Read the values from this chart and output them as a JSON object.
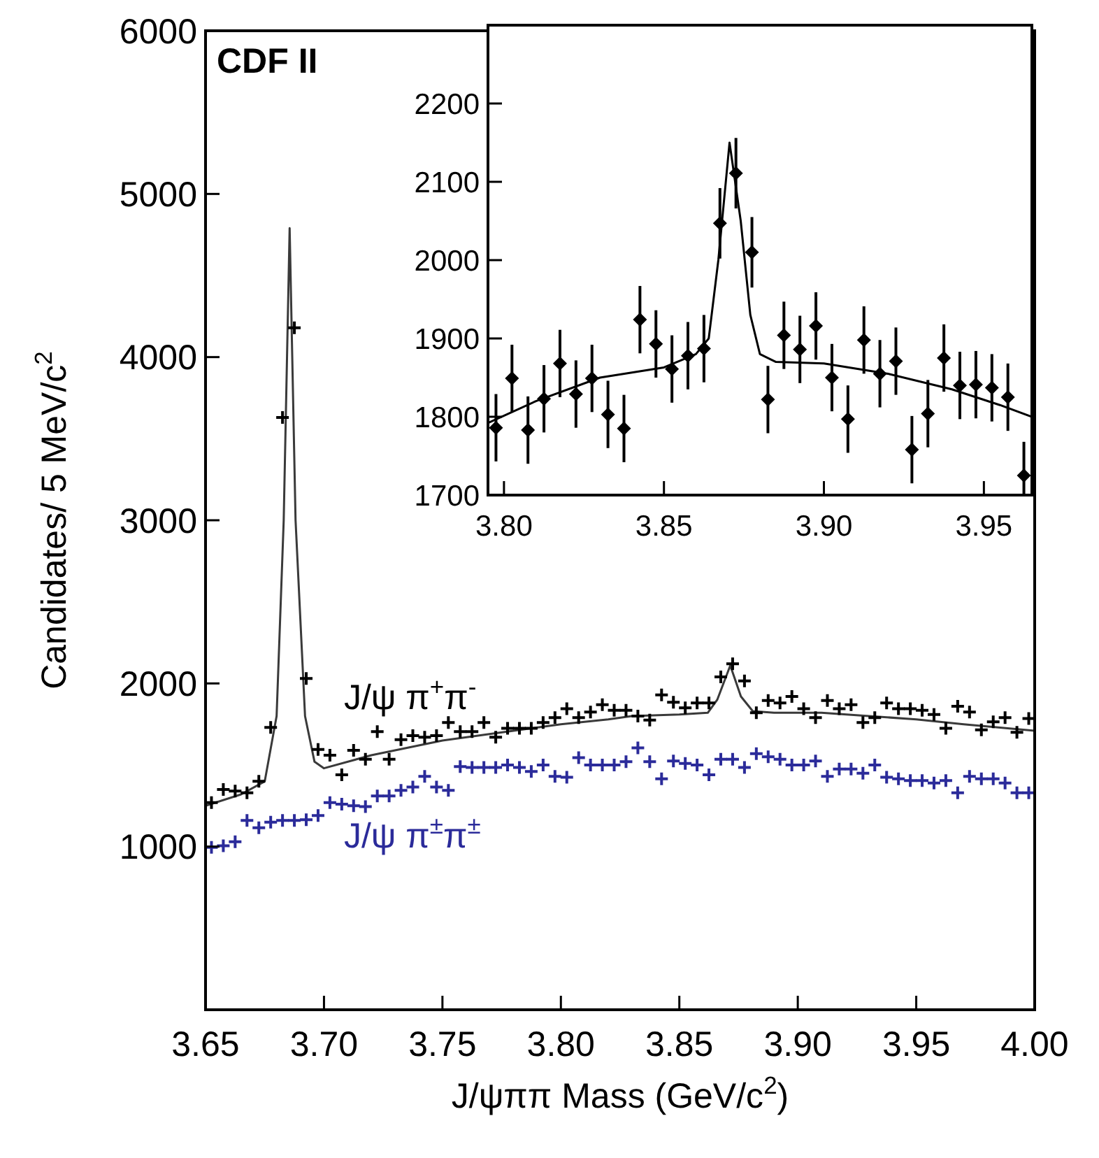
{
  "chart_data": [
    {
      "type": "scatter",
      "xlabel": "J/ψππ Mass  (GeV/c$^{2}$)",
      "ylabel": "Candidates/ 5 MeV/c$^{2}$",
      "annotations": [
        "CDF II"
      ],
      "xlim": [
        3.65,
        4.0
      ],
      "xticks": [
        {
          "value": 3.65,
          "label": "3.65"
        },
        {
          "value": 3.7,
          "label": "3.70"
        },
        {
          "value": 3.75,
          "label": "3.75"
        },
        {
          "value": 3.8,
          "label": "3.80"
        },
        {
          "value": 3.85,
          "label": "3.85"
        },
        {
          "value": 3.9,
          "label": "3.90"
        },
        {
          "value": 3.95,
          "label": "3.95"
        },
        {
          "value": 4.0,
          "label": "4.00"
        }
      ],
      "ylim": [
        0,
        6000
      ],
      "yticks": [
        1000,
        2000,
        3000,
        4000,
        5000,
        6000
      ],
      "x": [
        3.6525,
        3.6575,
        3.6625,
        3.6675,
        3.6725,
        3.6775,
        3.6825,
        3.6875,
        3.6925,
        3.6975,
        3.7025,
        3.7075,
        3.7125,
        3.7175,
        3.7225,
        3.7275,
        3.7325,
        3.7375,
        3.7425,
        3.7475,
        3.7525,
        3.7575,
        3.7625,
        3.7675,
        3.7725,
        3.7775,
        3.7825,
        3.7875,
        3.7925,
        3.7975,
        3.8025,
        3.8075,
        3.8125,
        3.8175,
        3.8225,
        3.8275,
        3.8325,
        3.8375,
        3.8425,
        3.8475,
        3.8525,
        3.8575,
        3.8625,
        3.8675,
        3.8725,
        3.8775,
        3.8825,
        3.8875,
        3.8925,
        3.8975,
        3.9025,
        3.9075,
        3.9125,
        3.9175,
        3.9225,
        3.9275,
        3.9325,
        3.9375,
        3.9425,
        3.9475,
        3.9525,
        3.9575,
        3.9625,
        3.9675,
        3.9725,
        3.9775,
        3.9825,
        3.9875,
        3.9925,
        3.9975
      ],
      "series": [
        {
          "name": "J/ψ π$^{+}$π$^{-}$",
          "color": "#000000",
          "marker": "cross",
          "values": [
            1270,
            1350,
            1340,
            1330,
            1400,
            1730,
            3630,
            4180,
            2030,
            1595,
            1560,
            1440,
            1590,
            1535,
            1705,
            1535,
            1655,
            1680,
            1670,
            1680,
            1760,
            1705,
            1705,
            1760,
            1670,
            1725,
            1725,
            1725,
            1760,
            1790,
            1845,
            1790,
            1825,
            1870,
            1835,
            1835,
            1800,
            1775,
            1930,
            1885,
            1850,
            1880,
            1880,
            2040,
            2120,
            2015,
            1820,
            1895,
            1880,
            1920,
            1845,
            1790,
            1895,
            1845,
            1870,
            1760,
            1790,
            1880,
            1845,
            1845,
            1835,
            1810,
            1725,
            1860,
            1825,
            1715,
            1765,
            1790,
            1700,
            1785
          ]
        },
        {
          "name": "J/ψ π$^{±}$π$^{±}$",
          "color": "#2b2b9a",
          "marker": "cross",
          "values": [
            995,
            1005,
            1030,
            1160,
            1115,
            1150,
            1160,
            1160,
            1165,
            1190,
            1270,
            1260,
            1250,
            1245,
            1310,
            1310,
            1345,
            1365,
            1430,
            1365,
            1345,
            1490,
            1485,
            1485,
            1485,
            1500,
            1485,
            1460,
            1500,
            1430,
            1425,
            1545,
            1500,
            1500,
            1500,
            1520,
            1605,
            1520,
            1415,
            1525,
            1510,
            1500,
            1440,
            1535,
            1535,
            1485,
            1570,
            1550,
            1535,
            1500,
            1500,
            1525,
            1430,
            1475,
            1475,
            1450,
            1500,
            1425,
            1415,
            1405,
            1405,
            1390,
            1405,
            1330,
            1430,
            1415,
            1415,
            1390,
            1330,
            1330
          ]
        },
        {
          "type": "line",
          "color": "#3a3a3a",
          "marker": "none",
          "x": [
            3.65,
            3.665,
            3.675,
            3.68,
            3.683,
            3.6855,
            3.688,
            3.692,
            3.696,
            3.7,
            3.72,
            3.75,
            3.78,
            3.8,
            3.82,
            3.83,
            3.85,
            3.862,
            3.866,
            3.8715,
            3.876,
            3.881,
            3.89,
            3.91,
            3.93,
            3.95,
            3.97,
            4.0
          ],
          "values": [
            1250,
            1320,
            1400,
            1800,
            3000,
            4790,
            3000,
            1800,
            1520,
            1480,
            1560,
            1650,
            1710,
            1750,
            1780,
            1800,
            1810,
            1820,
            1900,
            2110,
            1920,
            1830,
            1820,
            1820,
            1800,
            1780,
            1750,
            1710
          ]
        }
      ]
    },
    {
      "type": "scatter",
      "xlim": [
        3.795,
        3.965
      ],
      "xticks": [
        {
          "value": 3.8,
          "label": "3.80"
        },
        {
          "value": 3.85,
          "label": "3.85"
        },
        {
          "value": 3.9,
          "label": "3.90"
        },
        {
          "value": 3.95,
          "label": "3.95"
        }
      ],
      "ylim": [
        1700,
        2300
      ],
      "yticks": [
        1700,
        1800,
        1900,
        2000,
        2100,
        2200
      ],
      "x": [
        3.7975,
        3.8025,
        3.8075,
        3.8125,
        3.8175,
        3.8225,
        3.8275,
        3.8325,
        3.8375,
        3.8425,
        3.8475,
        3.8525,
        3.8575,
        3.8625,
        3.8675,
        3.8725,
        3.8775,
        3.8825,
        3.8875,
        3.8925,
        3.8975,
        3.9025,
        3.9075,
        3.9125,
        3.9175,
        3.9225,
        3.9275,
        3.9325,
        3.9375,
        3.9425,
        3.9475,
        3.9525,
        3.9575,
        3.9625
      ],
      "series": [
        {
          "color": "#000000",
          "marker": "diamond",
          "values": [
            1786,
            1849,
            1783,
            1823,
            1868,
            1829,
            1849,
            1803,
            1785,
            1924,
            1893,
            1861,
            1878,
            1887,
            2047,
            2111,
            2010,
            1822,
            1904,
            1886,
            1916,
            1850,
            1797,
            1898,
            1855,
            1871,
            1758,
            1804,
            1875,
            1840,
            1841,
            1837,
            1825,
            1725
          ],
          "errors": [
            43,
            43,
            43,
            43,
            43,
            43,
            43,
            43,
            43,
            43,
            43,
            43,
            43,
            43,
            45,
            45,
            45,
            43,
            43,
            43,
            43,
            43,
            43,
            43,
            43,
            43,
            43,
            43,
            43,
            43,
            43,
            43,
            43,
            43
          ]
        },
        {
          "type": "line",
          "color": "#000000",
          "marker": "none",
          "x": [
            3.795,
            3.81,
            3.83,
            3.85,
            3.86,
            3.864,
            3.867,
            3.8705,
            3.874,
            3.877,
            3.88,
            3.885,
            3.9,
            3.92,
            3.94,
            3.955,
            3.965
          ],
          "values": [
            1792,
            1820,
            1850,
            1863,
            1880,
            1900,
            2000,
            2150,
            2050,
            1930,
            1880,
            1870,
            1868,
            1855,
            1835,
            1815,
            1800
          ]
        }
      ]
    }
  ]
}
